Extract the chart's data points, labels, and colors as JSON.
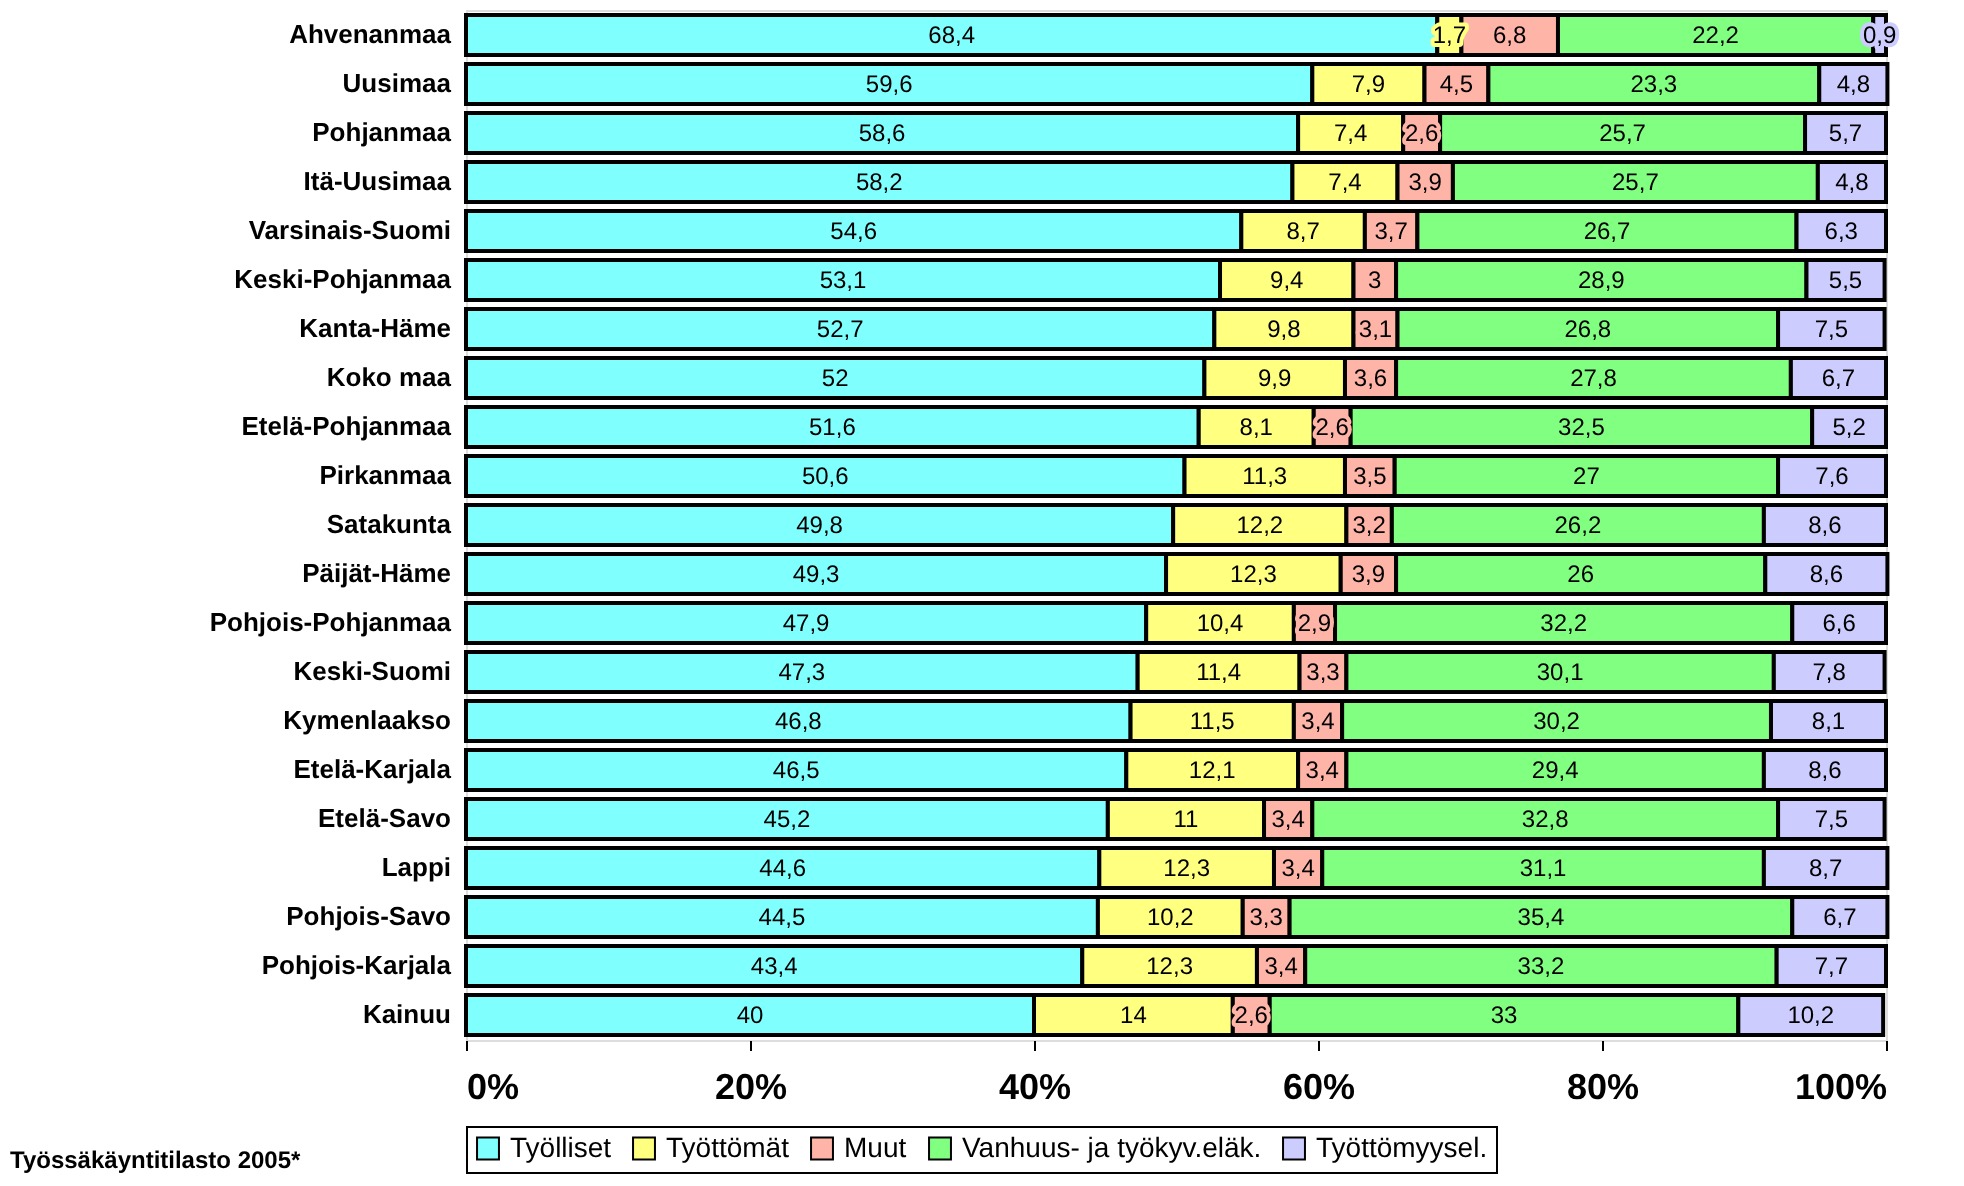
{
  "chart_data": {
    "type": "bar",
    "orientation": "horizontal",
    "stacked": true,
    "categories": [
      "Ahvenanmaa",
      "Uusimaa",
      "Pohjanmaa",
      "Itä-Uusimaa",
      "Varsinais-Suomi",
      "Keski-Pohjanmaa",
      "Kanta-Häme",
      "Koko maa",
      "Etelä-Pohjanmaa",
      "Pirkanmaa",
      "Satakunta",
      "Päijät-Häme",
      "Pohjois-Pohjanmaa",
      "Keski-Suomi",
      "Kymenlaakso",
      "Etelä-Karjala",
      "Etelä-Savo",
      "Lappi",
      "Pohjois-Savo",
      "Pohjois-Karjala",
      "Kainuu"
    ],
    "series": [
      {
        "name": "Työlliset",
        "color": "#80ffff",
        "values": [
          68.4,
          59.6,
          58.6,
          58.2,
          54.6,
          53.1,
          52.7,
          52,
          51.6,
          50.6,
          49.8,
          49.3,
          47.9,
          47.3,
          46.8,
          46.5,
          45.2,
          44.6,
          44.5,
          43.4,
          40
        ],
        "value_labels": [
          "68,4",
          "59,6",
          "58,6",
          "58,2",
          "54,6",
          "53,1",
          "52,7",
          "52",
          "51,6",
          "50,6",
          "49,8",
          "49,3",
          "47,9",
          "47,3",
          "46,8",
          "46,5",
          "45,2",
          "44,6",
          "44,5",
          "43,4",
          "40"
        ]
      },
      {
        "name": "Työttömät",
        "color": "#ffff80",
        "values": [
          1.7,
          7.9,
          7.4,
          7.4,
          8.7,
          9.4,
          9.8,
          9.9,
          8.1,
          11.3,
          12.2,
          12.3,
          10.4,
          11.4,
          11.5,
          12.1,
          11,
          12.3,
          10.2,
          12.3,
          14
        ],
        "value_labels": [
          "1,7",
          "7,9",
          "7,4",
          "7,4",
          "8,7",
          "9,4",
          "9,8",
          "9,9",
          "8,1",
          "11,3",
          "12,2",
          "12,3",
          "10,4",
          "11,4",
          "11,5",
          "12,1",
          "11",
          "12,3",
          "10,2",
          "12,3",
          "14"
        ]
      },
      {
        "name": "Muut",
        "color": "#ffb4a8",
        "values": [
          6.8,
          4.5,
          2.6,
          3.9,
          3.7,
          3,
          3.1,
          3.6,
          2.6,
          3.5,
          3.2,
          3.9,
          2.9,
          3.3,
          3.4,
          3.4,
          3.4,
          3.4,
          3.3,
          3.4,
          2.6
        ],
        "value_labels": [
          "6,8",
          "4,5",
          "2,6",
          "3,9",
          "3,7",
          "3",
          "3,1",
          "3,6",
          "2,6",
          "3,5",
          "3,2",
          "3,9",
          "2,9",
          "3,3",
          "3,4",
          "3,4",
          "3,4",
          "3,4",
          "3,3",
          "3,4",
          "2,6"
        ]
      },
      {
        "name": "Vanhuus- ja työkyv.eläk.",
        "color": "#80ff80",
        "values": [
          22.2,
          23.3,
          25.7,
          25.7,
          26.7,
          28.9,
          26.8,
          27.8,
          32.5,
          27,
          26.2,
          26,
          32.2,
          30.1,
          30.2,
          29.4,
          32.8,
          31.1,
          35.4,
          33.2,
          33
        ],
        "value_labels": [
          "22,2",
          "23,3",
          "25,7",
          "25,7",
          "26,7",
          "28,9",
          "26,8",
          "27,8",
          "32,5",
          "27",
          "26,2",
          "26",
          "32,2",
          "30,1",
          "30,2",
          "29,4",
          "32,8",
          "31,1",
          "35,4",
          "33,2",
          "33"
        ]
      },
      {
        "name": "Työttömyysel.",
        "color": "#ccccff",
        "values": [
          0.9,
          4.8,
          5.7,
          4.8,
          6.3,
          5.5,
          7.5,
          6.7,
          5.2,
          7.6,
          8.6,
          8.6,
          6.6,
          7.8,
          8.1,
          8.6,
          7.5,
          8.7,
          6.7,
          7.7,
          10.2
        ],
        "value_labels": [
          "0,9",
          "4,8",
          "5,7",
          "4,8",
          "6,3",
          "5,5",
          "7,5",
          "6,7",
          "5,2",
          "7,6",
          "8,6",
          "8,6",
          "6,6",
          "7,8",
          "8,1",
          "8,6",
          "7,5",
          "8,7",
          "6,7",
          "7,7",
          "10,2"
        ]
      }
    ],
    "xlim": [
      0,
      100
    ],
    "xticks": [
      {
        "value": 0,
        "label": "0%"
      },
      {
        "value": 20,
        "label": "20%"
      },
      {
        "value": 40,
        "label": "40%"
      },
      {
        "value": 60,
        "label": "60%"
      },
      {
        "value": 80,
        "label": "80%"
      },
      {
        "value": 100,
        "label": "100%"
      }
    ],
    "grid": false,
    "legend": "bottom",
    "annotations": [
      "Työssäkäyntitilasto 2005*"
    ]
  }
}
